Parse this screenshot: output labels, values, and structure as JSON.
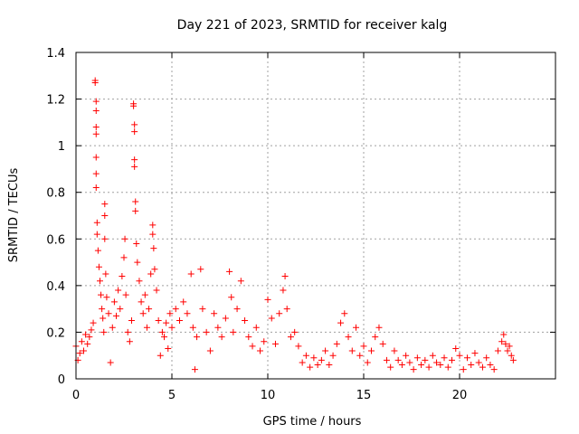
{
  "chart_data": {
    "type": "scatter",
    "title": "Day 221 of 2023, SRMTID for receiver kalg",
    "xlabel": "GPS time / hours",
    "ylabel": "SRMTID / TECUs",
    "xlim": [
      0,
      25
    ],
    "ylim": [
      0,
      1.4
    ],
    "xticks": [
      0,
      5,
      10,
      15,
      20
    ],
    "xtick_labels": [
      "0",
      "5",
      "10",
      "15",
      "20"
    ],
    "yticks": [
      0,
      0.2,
      0.4,
      0.6,
      0.8,
      1,
      1.2,
      1.4
    ],
    "ytick_labels": [
      "0",
      "0.2",
      "0.4",
      "0.6",
      "0.8",
      "1",
      "1.2",
      "1.4"
    ],
    "grid": true,
    "marker": "+",
    "color": "#ff0000",
    "series": [
      {
        "name": "SRMTID",
        "points": [
          [
            0.0,
            0.14
          ],
          [
            0.1,
            0.08
          ],
          [
            0.2,
            0.11
          ],
          [
            0.3,
            0.16
          ],
          [
            0.4,
            0.12
          ],
          [
            0.5,
            0.19
          ],
          [
            0.6,
            0.15
          ],
          [
            0.7,
            0.18
          ],
          [
            0.8,
            0.21
          ],
          [
            0.9,
            0.24
          ],
          [
            1.0,
            1.28
          ],
          [
            1.0,
            1.27
          ],
          [
            1.05,
            1.19
          ],
          [
            1.05,
            1.15
          ],
          [
            1.05,
            1.08
          ],
          [
            1.05,
            1.05
          ],
          [
            1.05,
            0.95
          ],
          [
            1.05,
            0.88
          ],
          [
            1.05,
            0.82
          ],
          [
            1.1,
            0.67
          ],
          [
            1.1,
            0.62
          ],
          [
            1.15,
            0.55
          ],
          [
            1.2,
            0.48
          ],
          [
            1.25,
            0.42
          ],
          [
            1.3,
            0.36
          ],
          [
            1.35,
            0.3
          ],
          [
            1.4,
            0.26
          ],
          [
            1.45,
            0.2
          ],
          [
            1.5,
            0.75
          ],
          [
            1.5,
            0.7
          ],
          [
            1.5,
            0.6
          ],
          [
            1.55,
            0.45
          ],
          [
            1.6,
            0.35
          ],
          [
            1.7,
            0.28
          ],
          [
            1.8,
            0.07
          ],
          [
            1.9,
            0.22
          ],
          [
            2.0,
            0.33
          ],
          [
            2.1,
            0.27
          ],
          [
            2.2,
            0.38
          ],
          [
            2.3,
            0.3
          ],
          [
            2.4,
            0.44
          ],
          [
            2.5,
            0.52
          ],
          [
            2.55,
            0.6
          ],
          [
            2.6,
            0.36
          ],
          [
            2.7,
            0.2
          ],
          [
            2.8,
            0.16
          ],
          [
            2.9,
            0.25
          ],
          [
            3.0,
            1.18
          ],
          [
            3.0,
            1.17
          ],
          [
            3.05,
            1.09
          ],
          [
            3.05,
            1.06
          ],
          [
            3.05,
            0.94
          ],
          [
            3.05,
            0.91
          ],
          [
            3.1,
            0.76
          ],
          [
            3.1,
            0.72
          ],
          [
            3.15,
            0.58
          ],
          [
            3.2,
            0.5
          ],
          [
            3.3,
            0.42
          ],
          [
            3.4,
            0.33
          ],
          [
            3.5,
            0.28
          ],
          [
            3.6,
            0.36
          ],
          [
            3.7,
            0.22
          ],
          [
            3.8,
            0.3
          ],
          [
            3.9,
            0.45
          ],
          [
            4.0,
            0.66
          ],
          [
            4.0,
            0.62
          ],
          [
            4.05,
            0.56
          ],
          [
            4.1,
            0.47
          ],
          [
            4.2,
            0.38
          ],
          [
            4.3,
            0.25
          ],
          [
            4.4,
            0.1
          ],
          [
            4.5,
            0.2
          ],
          [
            4.6,
            0.18
          ],
          [
            4.7,
            0.24
          ],
          [
            4.8,
            0.13
          ],
          [
            4.9,
            0.28
          ],
          [
            5.0,
            0.22
          ],
          [
            5.2,
            0.3
          ],
          [
            5.4,
            0.25
          ],
          [
            5.6,
            0.33
          ],
          [
            5.8,
            0.28
          ],
          [
            6.0,
            0.45
          ],
          [
            6.1,
            0.22
          ],
          [
            6.2,
            0.04
          ],
          [
            6.3,
            0.18
          ],
          [
            6.5,
            0.47
          ],
          [
            6.6,
            0.3
          ],
          [
            6.8,
            0.2
          ],
          [
            7.0,
            0.12
          ],
          [
            7.2,
            0.28
          ],
          [
            7.4,
            0.22
          ],
          [
            7.6,
            0.18
          ],
          [
            7.8,
            0.26
          ],
          [
            8.0,
            0.46
          ],
          [
            8.1,
            0.35
          ],
          [
            8.2,
            0.2
          ],
          [
            8.4,
            0.3
          ],
          [
            8.6,
            0.42
          ],
          [
            8.8,
            0.25
          ],
          [
            9.0,
            0.18
          ],
          [
            9.2,
            0.14
          ],
          [
            9.4,
            0.22
          ],
          [
            9.6,
            0.12
          ],
          [
            9.8,
            0.16
          ],
          [
            10.0,
            0.34
          ],
          [
            10.2,
            0.26
          ],
          [
            10.4,
            0.15
          ],
          [
            10.6,
            0.28
          ],
          [
            10.8,
            0.38
          ],
          [
            10.9,
            0.44
          ],
          [
            11.0,
            0.3
          ],
          [
            11.2,
            0.18
          ],
          [
            11.4,
            0.2
          ],
          [
            11.6,
            0.14
          ],
          [
            11.8,
            0.07
          ],
          [
            12.0,
            0.1
          ],
          [
            12.2,
            0.05
          ],
          [
            12.4,
            0.09
          ],
          [
            12.6,
            0.06
          ],
          [
            12.8,
            0.08
          ],
          [
            13.0,
            0.12
          ],
          [
            13.2,
            0.06
          ],
          [
            13.4,
            0.1
          ],
          [
            13.6,
            0.15
          ],
          [
            13.8,
            0.24
          ],
          [
            14.0,
            0.28
          ],
          [
            14.2,
            0.18
          ],
          [
            14.4,
            0.12
          ],
          [
            14.6,
            0.22
          ],
          [
            14.8,
            0.1
          ],
          [
            15.0,
            0.14
          ],
          [
            15.2,
            0.07
          ],
          [
            15.4,
            0.12
          ],
          [
            15.6,
            0.18
          ],
          [
            15.8,
            0.22
          ],
          [
            16.0,
            0.15
          ],
          [
            16.2,
            0.08
          ],
          [
            16.4,
            0.05
          ],
          [
            16.6,
            0.12
          ],
          [
            16.8,
            0.08
          ],
          [
            17.0,
            0.06
          ],
          [
            17.2,
            0.1
          ],
          [
            17.4,
            0.07
          ],
          [
            17.6,
            0.04
          ],
          [
            17.8,
            0.09
          ],
          [
            18.0,
            0.06
          ],
          [
            18.2,
            0.08
          ],
          [
            18.4,
            0.05
          ],
          [
            18.6,
            0.1
          ],
          [
            18.8,
            0.07
          ],
          [
            19.0,
            0.06
          ],
          [
            19.2,
            0.09
          ],
          [
            19.4,
            0.05
          ],
          [
            19.6,
            0.08
          ],
          [
            19.8,
            0.13
          ],
          [
            20.0,
            0.1
          ],
          [
            20.2,
            0.04
          ],
          [
            20.4,
            0.09
          ],
          [
            20.6,
            0.06
          ],
          [
            20.8,
            0.11
          ],
          [
            21.0,
            0.07
          ],
          [
            21.2,
            0.05
          ],
          [
            21.4,
            0.09
          ],
          [
            21.6,
            0.06
          ],
          [
            21.8,
            0.04
          ],
          [
            22.0,
            0.12
          ],
          [
            22.2,
            0.16
          ],
          [
            22.3,
            0.19
          ],
          [
            22.4,
            0.15
          ],
          [
            22.5,
            0.12
          ],
          [
            22.6,
            0.14
          ],
          [
            22.7,
            0.1
          ],
          [
            22.8,
            0.08
          ]
        ]
      }
    ]
  }
}
